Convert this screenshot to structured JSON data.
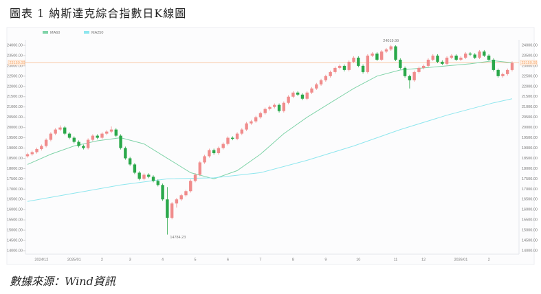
{
  "chart_data": {
    "type": "candlestick",
    "title": "圖表 1 納斯達克綜合指數日K線圖",
    "source": "數據來源：Wind資訊",
    "categories": [
      null,
      null,
      null,
      "2024/12",
      null,
      null,
      null,
      null,
      null,
      null,
      "2025/01",
      null,
      null,
      null,
      null,
      null,
      "2",
      null,
      null,
      null,
      null,
      null,
      "3",
      null,
      null,
      null,
      null,
      null,
      null,
      "4",
      null,
      null,
      null,
      null,
      null,
      null,
      "5",
      null,
      null,
      null,
      null,
      null,
      null,
      "6",
      null,
      null,
      null,
      null,
      null,
      null,
      "7",
      null,
      null,
      null,
      null,
      null,
      null,
      "8",
      null,
      null,
      null,
      null,
      null,
      null,
      "9",
      null,
      null,
      null,
      null,
      null,
      null,
      "10",
      null,
      null,
      null,
      null,
      null,
      null,
      null,
      "11",
      null,
      null,
      null,
      null,
      null,
      "12",
      null,
      null,
      null,
      null,
      null,
      null,
      null,
      "2026/01",
      null,
      null,
      null,
      null,
      null,
      "2",
      null,
      null,
      null,
      null,
      null
    ],
    "open": [
      18600,
      18700,
      18800,
      18950,
      19100,
      19400,
      19700,
      19900,
      20000,
      19700,
      19500,
      19300,
      19100,
      19000,
      19400,
      19600,
      19500,
      19700,
      19800,
      19900,
      19600,
      19000,
      18500,
      18200,
      17800,
      17500,
      17700,
      17600,
      17400,
      17200,
      16500,
      15600,
      16300,
      16500,
      16700,
      16900,
      17400,
      17700,
      18300,
      18600,
      18900,
      18750,
      19000,
      19200,
      19500,
      19450,
      19700,
      19900,
      20200,
      20300,
      20500,
      20700,
      20900,
      21000,
      21100,
      20800,
      21200,
      21500,
      21700,
      21600,
      21400,
      21700,
      21900,
      22100,
      22300,
      22500,
      22700,
      22900,
      23000,
      22800,
      23200,
      23400,
      23000,
      22700,
      23500,
      23600,
      23300,
      23700,
      23800,
      23950,
      23300,
      22900,
      22500,
      22300,
      22700,
      22900,
      23000,
      23300,
      23500,
      23200,
      23100,
      23400,
      23500,
      23300,
      23400,
      23600,
      23550,
      23400,
      23700,
      23500,
      23300,
      22800,
      22500,
      22600,
      22800
    ],
    "high": [
      18770,
      18870,
      19020,
      19170,
      19470,
      19770,
      19970,
      20100,
      20070,
      19770,
      19570,
      19370,
      19170,
      19470,
      19670,
      19670,
      19770,
      19870,
      20050,
      19970,
      19670,
      19070,
      18570,
      18270,
      17870,
      17770,
      17770,
      17670,
      17470,
      17270,
      17100,
      16370,
      16570,
      16770,
      16970,
      17470,
      17770,
      18370,
      18670,
      18970,
      18970,
      19070,
      19270,
      19570,
      19570,
      19770,
      19970,
      20270,
      20370,
      20570,
      20770,
      20970,
      21070,
      21170,
      21170,
      21270,
      21570,
      21770,
      21770,
      21670,
      21770,
      21970,
      22170,
      22370,
      22570,
      22770,
      22970,
      23070,
      23070,
      23270,
      23470,
      23470,
      23070,
      23570,
      23670,
      23670,
      23770,
      23870,
      24019.99,
      24000,
      23370,
      22970,
      22570,
      22770,
      22970,
      23070,
      23370,
      23570,
      23570,
      23270,
      23470,
      23570,
      23570,
      23470,
      23670,
      23670,
      23620,
      23770,
      23770,
      23570,
      23370,
      22870,
      22670,
      22870,
      23220
    ],
    "low": [
      18530,
      18630,
      18730,
      18880,
      19030,
      19330,
      19630,
      19830,
      19630,
      19430,
      19230,
      19030,
      18930,
      18930,
      19330,
      19430,
      19430,
      19630,
      19730,
      19530,
      18930,
      18430,
      18130,
      17730,
      17430,
      17430,
      17530,
      17330,
      17130,
      16430,
      14784.23,
      15530,
      16100,
      16430,
      16630,
      16830,
      17330,
      17630,
      18230,
      18530,
      18680,
      18680,
      18930,
      19130,
      19380,
      19380,
      19630,
      19830,
      20130,
      20230,
      20430,
      20630,
      20830,
      20930,
      20730,
      20730,
      21130,
      21430,
      21530,
      21330,
      21330,
      21630,
      21830,
      22030,
      22230,
      22430,
      22630,
      22830,
      22730,
      22730,
      23130,
      22930,
      22630,
      22630,
      23430,
      23230,
      23230,
      23630,
      23730,
      23230,
      22830,
      22430,
      21900,
      22230,
      22630,
      22830,
      22930,
      23230,
      23130,
      23030,
      23030,
      23330,
      23230,
      23230,
      23330,
      23480,
      23330,
      23330,
      23430,
      23230,
      22730,
      22430,
      22430,
      22530,
      22730
    ],
    "close": [
      18700,
      18800,
      18950,
      19100,
      19400,
      19700,
      19900,
      20000,
      19700,
      19500,
      19300,
      19100,
      19000,
      19400,
      19600,
      19500,
      19700,
      19800,
      19900,
      19600,
      19000,
      18500,
      18200,
      17800,
      17500,
      17700,
      17600,
      17400,
      17200,
      16500,
      15600,
      16300,
      16500,
      16700,
      16900,
      17400,
      17700,
      18300,
      18600,
      18900,
      18750,
      19000,
      19200,
      19500,
      19450,
      19700,
      19900,
      20200,
      20300,
      20500,
      20700,
      20900,
      21000,
      21100,
      20800,
      21200,
      21500,
      21700,
      21600,
      21400,
      21700,
      21900,
      22100,
      22300,
      22500,
      22700,
      22900,
      23000,
      22800,
      23200,
      23400,
      23000,
      22700,
      23500,
      23600,
      23300,
      23700,
      23800,
      23950,
      23300,
      22900,
      22500,
      22300,
      22700,
      22900,
      23000,
      23300,
      23500,
      23200,
      23100,
      23400,
      23500,
      23300,
      23400,
      23600,
      23550,
      23400,
      23700,
      23500,
      23300,
      22800,
      22500,
      22600,
      22800,
      23150
    ],
    "up_color": "#f08c8c",
    "down_color": "#2aa84a",
    "series": [
      {
        "name": "MA60",
        "color": "#7fd3a8",
        "x": [
          0,
          5,
          10,
          15,
          20,
          25,
          30,
          35,
          40,
          45,
          50,
          55,
          60,
          65,
          70,
          75,
          80,
          85,
          90,
          95,
          100,
          104
        ],
        "values": [
          18200,
          18700,
          19100,
          19350,
          19500,
          19200,
          18500,
          17800,
          17500,
          17900,
          18700,
          19700,
          20500,
          21200,
          21900,
          22500,
          22800,
          22900,
          23000,
          23100,
          23250,
          23150
        ]
      },
      {
        "name": "MA250",
        "color": "#8ee6ee",
        "x": [
          0,
          10,
          20,
          30,
          40,
          50,
          60,
          70,
          80,
          90,
          100,
          104
        ],
        "values": [
          16400,
          16800,
          17200,
          17500,
          17550,
          17800,
          18400,
          19100,
          19900,
          20600,
          21200,
          21400
        ]
      }
    ],
    "annotations": [
      {
        "text": "24019.99"
      },
      {
        "text": "14784.23"
      }
    ],
    "price_line": {
      "value": 23150,
      "label": "23150.00",
      "color": "#f5a66b"
    },
    "ylim": [
      14000,
      24000
    ],
    "yticks": [
      {
        "value": 14000,
        "label": "14000.00"
      },
      {
        "value": 14500,
        "label": "14500.00"
      },
      {
        "value": 15000,
        "label": "15000.00"
      },
      {
        "value": 15500,
        "label": "15500.00"
      },
      {
        "value": 16000,
        "label": "16000.00"
      },
      {
        "value": 16500,
        "label": "16500.00"
      },
      {
        "value": 17000,
        "label": "17000.00"
      },
      {
        "value": 17500,
        "label": "17500.00"
      },
      {
        "value": 18000,
        "label": "18000.00"
      },
      {
        "value": 18500,
        "label": "18500.00"
      },
      {
        "value": 19000,
        "label": "19000.00"
      },
      {
        "value": 19500,
        "label": "19500.00"
      },
      {
        "value": 20000,
        "label": "20000.00"
      },
      {
        "value": 20500,
        "label": "20500.00"
      },
      {
        "value": 21000,
        "label": "21000.00"
      },
      {
        "value": 21500,
        "label": "21500.00"
      },
      {
        "value": 22000,
        "label": "22000.00"
      },
      {
        "value": 22500,
        "label": "22500.00"
      },
      {
        "value": 23000,
        "label": "23000.00"
      },
      {
        "value": 23500,
        "label": "23500.00"
      },
      {
        "value": 24000,
        "label": "24000.00"
      }
    ]
  }
}
